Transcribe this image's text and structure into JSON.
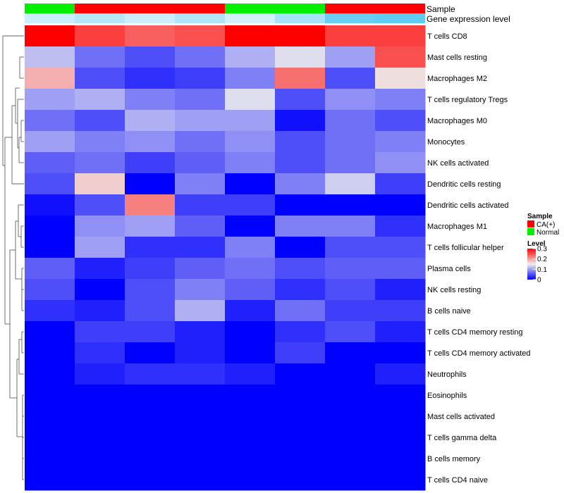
{
  "chart_data": {
    "type": "heatmap",
    "title": "",
    "annotation_tracks": [
      {
        "name": "Sample",
        "values": [
          "Normal",
          "CA(+)",
          "CA(+)",
          "CA(+)",
          "Normal",
          "Normal",
          "CA(+)",
          "CA(+)"
        ]
      },
      {
        "name": "Gene expression level",
        "values": [
          0.3,
          0.42,
          0.3,
          0.45,
          0.25,
          0.5,
          0.85,
          0.9
        ]
      }
    ],
    "rows": [
      "T cells CD8",
      "Mast cells resting",
      "Macrophages M2",
      "T cells regulatory  Tregs",
      "Macrophages M0",
      "Monocytes",
      "NK cells activated",
      "Dendritic cells resting",
      "Dendritic cells activated",
      "Macrophages M1",
      "T cells follicular helper",
      "Plasma cells",
      "NK cells resting",
      "B cells naive",
      "T cells CD4 memory resting",
      "T cells CD4 memory activated",
      "Neutrophils",
      "Eosinophils",
      "Mast cells activated",
      "T cells gamma delta",
      "B cells memory",
      "T cells CD4 naive"
    ],
    "values": [
      [
        0.3,
        0.26,
        0.24,
        0.25,
        0.3,
        0.3,
        0.26,
        0.26
      ],
      [
        0.12,
        0.07,
        0.05,
        0.07,
        0.11,
        0.14,
        0.1,
        0.25
      ],
      [
        0.19,
        0.05,
        0.03,
        0.04,
        0.08,
        0.23,
        0.05,
        0.16
      ],
      [
        0.1,
        0.11,
        0.08,
        0.07,
        0.14,
        0.05,
        0.09,
        0.08
      ],
      [
        0.07,
        0.05,
        0.11,
        0.1,
        0.1,
        0.01,
        0.07,
        0.05
      ],
      [
        0.1,
        0.08,
        0.09,
        0.07,
        0.09,
        0.05,
        0.07,
        0.08
      ],
      [
        0.06,
        0.07,
        0.04,
        0.06,
        0.08,
        0.05,
        0.07,
        0.09
      ],
      [
        0.05,
        0.17,
        0.0,
        0.08,
        0.0,
        0.08,
        0.13,
        0.04
      ],
      [
        0.01,
        0.05,
        0.22,
        0.04,
        0.04,
        0.0,
        0.0,
        0.0
      ],
      [
        0.0,
        0.09,
        0.1,
        0.06,
        0.0,
        0.08,
        0.08,
        0.03
      ],
      [
        0.0,
        0.1,
        0.03,
        0.03,
        0.08,
        0.0,
        0.05,
        0.05
      ],
      [
        0.06,
        0.02,
        0.04,
        0.06,
        0.07,
        0.05,
        0.06,
        0.06
      ],
      [
        0.05,
        0.0,
        0.05,
        0.08,
        0.06,
        0.03,
        0.05,
        0.02
      ],
      [
        0.03,
        0.02,
        0.05,
        0.11,
        0.02,
        0.07,
        0.04,
        0.04
      ],
      [
        0.0,
        0.04,
        0.04,
        0.02,
        0.0,
        0.03,
        0.05,
        0.02
      ],
      [
        0.0,
        0.03,
        0.0,
        0.02,
        0.0,
        0.04,
        0.0,
        0.0
      ],
      [
        0.0,
        0.02,
        0.03,
        0.03,
        0.02,
        0.0,
        0.0,
        0.02
      ],
      [
        0.0,
        0.0,
        0.0,
        0.0,
        0.0,
        0.0,
        0.0,
        0.0
      ],
      [
        0.0,
        0.0,
        0.0,
        0.0,
        0.0,
        0.0,
        0.0,
        0.0
      ],
      [
        0.0,
        0.0,
        0.0,
        0.0,
        0.0,
        0.0,
        0.0,
        0.0
      ],
      [
        0.0,
        0.0,
        0.0,
        0.0,
        0.0,
        0.0,
        0.0,
        0.0
      ],
      [
        0.0,
        0.0,
        0.0,
        0.0,
        0.0,
        0.0,
        0.0,
        0.0
      ]
    ],
    "color_scale": {
      "stops": [
        {
          "value": 0,
          "color": "#0000ff"
        },
        {
          "value": 0.15,
          "color": "#eeeeee"
        },
        {
          "value": 0.3,
          "color": "#ff0000"
        }
      ]
    },
    "legend": {
      "placement": "right",
      "sample_title": "Sample",
      "sample_entries": [
        {
          "label": "CA(+)",
          "color": "#ff0000"
        },
        {
          "label": "Normal",
          "color": "#00ee00"
        }
      ],
      "level_title": "Level",
      "level_ticks": [
        {
          "value": 0.3,
          "label": "0.3"
        },
        {
          "value": 0.2,
          "label": "0.2"
        },
        {
          "value": 0.1,
          "label": "0.1"
        },
        {
          "value": 0,
          "label": "0"
        }
      ]
    },
    "track_colors": {
      "Sample": {
        "CA(+)": "#ff0000",
        "Normal": "#00ee00"
      },
      "Gene expression level": {
        "low": "#ffffff",
        "high": "#4fc6f0"
      }
    },
    "dendrogram": "rows"
  }
}
